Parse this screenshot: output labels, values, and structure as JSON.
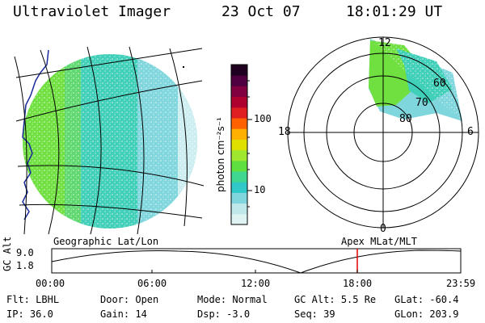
{
  "header": {
    "instrument": "Ultraviolet Imager",
    "date": "23 Oct 07",
    "time": "18:01:29 UT"
  },
  "colorbar": {
    "unit_label": "photon cm⁻²s⁻¹",
    "ticks": [
      "100",
      "10"
    ],
    "colors": [
      "#dff3f3",
      "#bfe8ea",
      "#7fd6dc",
      "#30c8c8",
      "#40d890",
      "#60e040",
      "#a0e830",
      "#e0e000",
      "#ffb000",
      "#ff6000",
      "#e02020",
      "#b00030",
      "#800040",
      "#500040",
      "#200020"
    ]
  },
  "geo_panel": {
    "label": "Geographic Lat/Lon"
  },
  "polar_panel": {
    "label": "Apex MLat/MLT",
    "mlt_labels": {
      "top": "12",
      "right": "6",
      "bottom": "0",
      "left": "18"
    },
    "lat_labels": [
      "60",
      "70",
      "80"
    ]
  },
  "timeline": {
    "axis_label": "GC Alt",
    "y_ticks": [
      "9.0",
      "1.8"
    ],
    "x_ticks": [
      "00:00",
      "06:00",
      "12:00",
      "18:00",
      "23:59"
    ],
    "marker_color": "#e00000"
  },
  "footer": {
    "row1": [
      {
        "label": "Flt:",
        "value": "LBHL"
      },
      {
        "label": "Door:",
        "value": "Open"
      },
      {
        "label": "Mode:",
        "value": "Normal"
      },
      {
        "label": "GC Alt:",
        "value": "5.5 Re"
      },
      {
        "label": "GLat:",
        "value": "-60.4"
      }
    ],
    "row2": [
      {
        "label": "IP:",
        "value": "36.0"
      },
      {
        "label": "Gain:",
        "value": "14"
      },
      {
        "label": "Dsp:",
        "value": "-3.0"
      },
      {
        "label": "Seq:",
        "value": "39"
      },
      {
        "label": "GLon:",
        "value": "203.9"
      }
    ]
  }
}
